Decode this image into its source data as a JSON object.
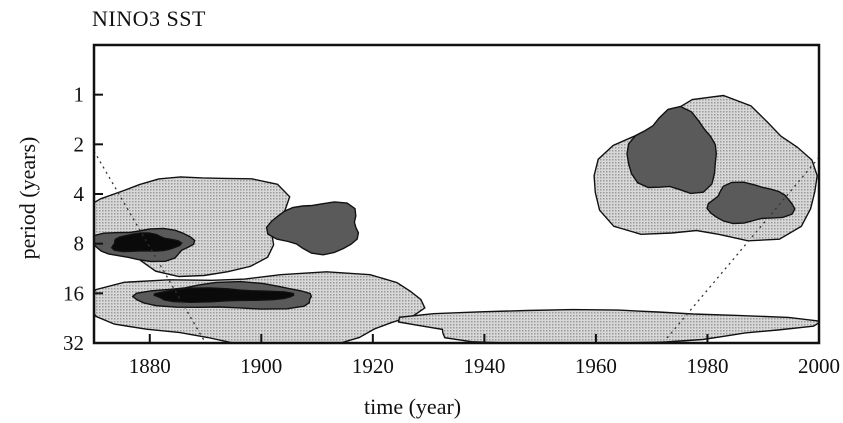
{
  "chart_data": {
    "type": "heatmap",
    "title": "NINO3 SST",
    "xlabel": "time (year)",
    "ylabel": "period (years)",
    "x_range": [
      1870,
      2000
    ],
    "y_range": [
      0.5,
      32
    ],
    "y_scale": "log2-inverted",
    "x_ticks": [
      1880,
      1900,
      1920,
      1940,
      1960,
      1980,
      2000
    ],
    "y_ticks": [
      1,
      2,
      4,
      8,
      16,
      32
    ],
    "legend": "none",
    "grid": false,
    "levels": [
      "white",
      "light-gray",
      "gray",
      "black"
    ],
    "colors": {
      "level1": "#c8c8c8",
      "level2": "#5a5a5a",
      "level3": "#0a0a0a",
      "frame": "#111111"
    },
    "features": [
      {
        "level": 1,
        "x": [
          1870,
          1905
        ],
        "period": [
          3,
          12
        ]
      },
      {
        "level": 1,
        "x": [
          1870,
          1930
        ],
        "period": [
          12,
          32
        ]
      },
      {
        "level": 1,
        "x": [
          1925,
          1995
        ],
        "period": [
          20,
          32
        ]
      },
      {
        "level": 1,
        "x": [
          1960,
          2000
        ],
        "period": [
          1.2,
          8
        ]
      },
      {
        "level": 2,
        "x": [
          1870,
          1888
        ],
        "period": [
          6.5,
          10
        ]
      },
      {
        "level": 2,
        "x": [
          1878,
          1910
        ],
        "period": [
          14,
          20
        ]
      },
      {
        "level": 2,
        "x": [
          1902,
          1918
        ],
        "period": [
          4.5,
          9
        ]
      },
      {
        "level": 2,
        "x": [
          1966,
          1982
        ],
        "period": [
          1.3,
          4
        ]
      },
      {
        "level": 2,
        "x": [
          1980,
          1995
        ],
        "period": [
          3.5,
          6
        ]
      },
      {
        "level": 3,
        "x": [
          1873,
          1885
        ],
        "period": [
          7,
          9
        ]
      },
      {
        "level": 3,
        "x": [
          1880,
          1905
        ],
        "period": [
          15,
          18
        ]
      }
    ]
  }
}
